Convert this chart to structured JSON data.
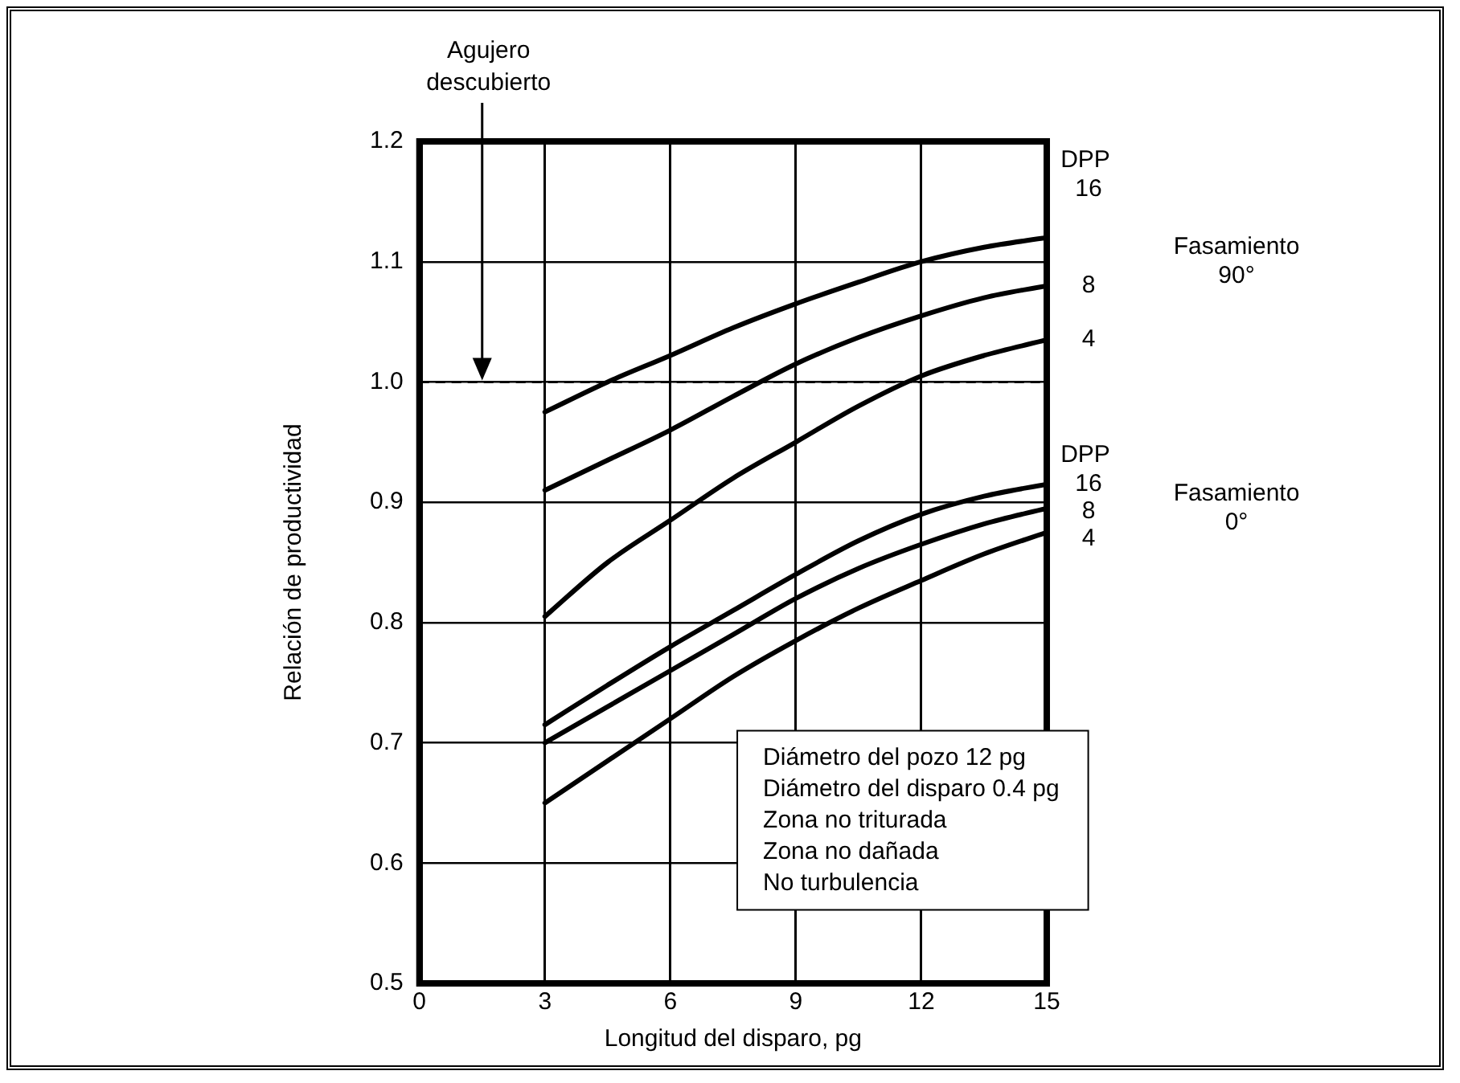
{
  "chart_data": {
    "type": "line",
    "xlabel": "Longitud del disparo, pg",
    "ylabel": "Relación de productividad",
    "xlim": [
      0,
      15
    ],
    "xticks": [
      0,
      3,
      6,
      9,
      12,
      15
    ],
    "ylim": [
      0.5,
      1.2
    ],
    "yticks": [
      0.5,
      0.6,
      0.7,
      0.8,
      0.9,
      {
        "value": 1,
        "label": "1.0"
      },
      1.1,
      1.2
    ],
    "grid": true,
    "legend": false,
    "marker": "none",
    "line_style": "solid",
    "x": [
      3,
      4.5,
      6,
      7.5,
      9,
      10.5,
      12,
      13.5,
      15
    ],
    "series": [
      {
        "name": "16",
        "color": "#000000",
        "values": [
          0.975,
          1.0,
          1.022,
          1.045,
          1.065,
          1.083,
          1.1,
          1.112,
          1.12
        ]
      },
      {
        "name": "8",
        "color": "#000000",
        "values": [
          0.91,
          0.935,
          0.96,
          0.988,
          1.015,
          1.037,
          1.055,
          1.07,
          1.08
        ]
      },
      {
        "name": "4",
        "color": "#000000",
        "values": [
          0.805,
          0.85,
          0.885,
          0.92,
          0.95,
          0.98,
          1.005,
          1.022,
          1.035
        ]
      },
      {
        "name": "16",
        "color": "#000000",
        "values": [
          0.715,
          0.748,
          0.78,
          0.81,
          0.84,
          0.868,
          0.89,
          0.905,
          0.915
        ]
      },
      {
        "name": "8",
        "color": "#000000",
        "values": [
          0.7,
          0.73,
          0.76,
          0.79,
          0.82,
          0.845,
          0.865,
          0.882,
          0.895
        ]
      },
      {
        "name": "4",
        "color": "#000000",
        "values": [
          0.65,
          0.685,
          0.72,
          0.755,
          0.785,
          0.812,
          0.835,
          0.857,
          0.875
        ]
      }
    ],
    "ref_lines": [
      {
        "axis": "y",
        "value": 1,
        "color": "#000000",
        "line_style": "dashed"
      }
    ],
    "annotations": [
      "Agujero descubierto",
      "Diámetro del pozo 12 pg",
      "Diámetro del disparo 0.4 pg",
      "Zona no triturada",
      "Zona no dañada",
      "No turbulencia",
      "DPP",
      "Fasamiento 90°",
      "DPP",
      "Fasamiento 0°"
    ]
  }
}
